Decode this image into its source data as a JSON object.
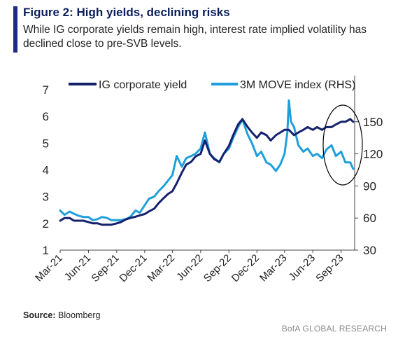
{
  "figure": {
    "title": "Figure 2: High yields, declining risks",
    "subtitle": "While IG corporate yields remain high, interest rate implied volatility has declined close to pre-SVB levels.",
    "source_label": "Source:",
    "source_value": "Bloomberg",
    "brand": "BofA GLOBAL RESEARCH"
  },
  "colors": {
    "accent": "#1f2b84",
    "ig_series": "#16216e",
    "move_series": "#1f9fdb",
    "axis": "#444444",
    "text": "#222222"
  },
  "chart_data": {
    "type": "line",
    "title": "",
    "xlabel": "",
    "ylabel": "",
    "y2label": "",
    "x_ticks": [
      "Mar-21",
      "Jun-21",
      "Sep-21",
      "Dec-21",
      "Mar-22",
      "Jun-22",
      "Sep-22",
      "Dec-22",
      "Mar-23",
      "Jun-23",
      "Sep-23"
    ],
    "ylim": [
      1,
      7
    ],
    "y_ticks": [
      1,
      2,
      3,
      4,
      5,
      6,
      7
    ],
    "y2lim": [
      30,
      180
    ],
    "y2_ticks": [
      30,
      60,
      90,
      120,
      150
    ],
    "grid": false,
    "legend": "top",
    "annotation": "ellipse around Aug-23 to Oct-23 values",
    "series": [
      {
        "name": "IG corporate yield",
        "axis": "left",
        "x": [
          "2021-03-01",
          "2021-03-15",
          "2021-04-01",
          "2021-04-15",
          "2021-05-01",
          "2021-05-15",
          "2021-06-01",
          "2021-06-15",
          "2021-07-01",
          "2021-07-15",
          "2021-08-01",
          "2021-08-15",
          "2021-09-01",
          "2021-09-15",
          "2021-10-01",
          "2021-10-15",
          "2021-11-01",
          "2021-11-15",
          "2021-12-01",
          "2021-12-15",
          "2022-01-01",
          "2022-01-15",
          "2022-02-01",
          "2022-02-15",
          "2022-03-01",
          "2022-03-15",
          "2022-04-01",
          "2022-04-15",
          "2022-05-01",
          "2022-05-15",
          "2022-06-01",
          "2022-06-15",
          "2022-07-01",
          "2022-07-15",
          "2022-08-01",
          "2022-08-15",
          "2022-09-01",
          "2022-09-15",
          "2022-10-01",
          "2022-10-15",
          "2022-11-01",
          "2022-11-15",
          "2022-12-01",
          "2022-12-15",
          "2023-01-01",
          "2023-01-15",
          "2023-02-01",
          "2023-02-15",
          "2023-03-01",
          "2023-03-15",
          "2023-04-01",
          "2023-04-15",
          "2023-05-01",
          "2023-05-15",
          "2023-06-01",
          "2023-06-15",
          "2023-07-01",
          "2023-07-15",
          "2023-08-01",
          "2023-08-15",
          "2023-09-01",
          "2023-09-15",
          "2023-10-01",
          "2023-10-10"
        ],
        "values": [
          2.1,
          2.2,
          2.2,
          2.1,
          2.1,
          2.1,
          2.05,
          2.0,
          2.0,
          1.95,
          1.95,
          1.95,
          2.0,
          2.05,
          2.15,
          2.2,
          2.25,
          2.3,
          2.35,
          2.45,
          2.55,
          2.75,
          2.95,
          3.1,
          3.2,
          3.5,
          3.9,
          4.2,
          4.3,
          4.5,
          4.6,
          5.1,
          4.6,
          4.4,
          4.3,
          4.6,
          4.9,
          5.3,
          5.7,
          5.9,
          5.6,
          5.4,
          5.2,
          5.4,
          5.3,
          5.1,
          5.3,
          5.4,
          5.5,
          5.5,
          5.3,
          5.4,
          5.5,
          5.6,
          5.5,
          5.6,
          5.5,
          5.6,
          5.6,
          5.7,
          5.8,
          5.8,
          5.9,
          5.8
        ]
      },
      {
        "name": "3M MOVE index (RHS)",
        "axis": "right",
        "x": [
          "2021-03-01",
          "2021-03-15",
          "2021-04-01",
          "2021-04-15",
          "2021-05-01",
          "2021-05-15",
          "2021-06-01",
          "2021-06-15",
          "2021-07-01",
          "2021-07-15",
          "2021-08-01",
          "2021-08-15",
          "2021-09-01",
          "2021-09-15",
          "2021-10-01",
          "2021-10-15",
          "2021-11-01",
          "2021-11-15",
          "2021-12-01",
          "2021-12-15",
          "2022-01-01",
          "2022-01-15",
          "2022-02-01",
          "2022-02-15",
          "2022-03-01",
          "2022-03-15",
          "2022-04-01",
          "2022-04-15",
          "2022-05-01",
          "2022-05-15",
          "2022-06-01",
          "2022-06-15",
          "2022-07-01",
          "2022-07-15",
          "2022-08-01",
          "2022-08-15",
          "2022-09-01",
          "2022-09-15",
          "2022-10-01",
          "2022-10-15",
          "2022-11-01",
          "2022-11-15",
          "2022-12-01",
          "2022-12-15",
          "2023-01-01",
          "2023-01-15",
          "2023-02-01",
          "2023-02-15",
          "2023-03-01",
          "2023-03-10",
          "2023-03-15",
          "2023-03-22",
          "2023-04-01",
          "2023-04-15",
          "2023-05-01",
          "2023-05-15",
          "2023-06-01",
          "2023-06-15",
          "2023-07-01",
          "2023-07-15",
          "2023-08-01",
          "2023-08-15",
          "2023-09-01",
          "2023-09-15",
          "2023-10-01",
          "2023-10-10"
        ],
        "values": [
          67,
          63,
          66,
          64,
          62,
          61,
          61,
          58,
          59,
          61,
          60,
          58,
          58,
          58,
          59,
          61,
          67,
          65,
          72,
          78,
          80,
          85,
          90,
          95,
          100,
          118,
          108,
          116,
          118,
          120,
          125,
          140,
          120,
          116,
          112,
          120,
          125,
          135,
          145,
          152,
          138,
          130,
          118,
          122,
          112,
          110,
          104,
          110,
          120,
          140,
          170,
          150,
          145,
          128,
          122,
          125,
          118,
          120,
          116,
          124,
          128,
          118,
          122,
          112,
          112,
          106
        ]
      }
    ]
  }
}
